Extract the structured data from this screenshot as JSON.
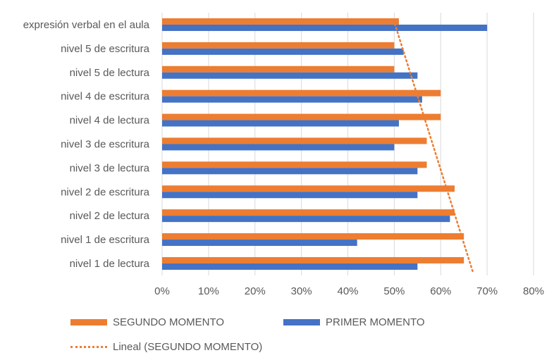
{
  "chart_data": {
    "type": "bar",
    "orientation": "horizontal",
    "categories": [
      "nivel 1 de lectura",
      "nivel 1 de escritura",
      "nivel 2 de lectura",
      "nivel 2 de escritura",
      "nivel 3 de lectura",
      "nivel 3 de escritura",
      "nivel 4 de lectura",
      "nivel 4 de escritura",
      "nivel 5 de lectura",
      "nivel 5 de escritura",
      "expresión verbal en el aula"
    ],
    "series": [
      {
        "name": "SEGUNDO MOMENTO",
        "color": "#ED7D31",
        "values": [
          0.65,
          0.65,
          0.63,
          0.63,
          0.57,
          0.57,
          0.6,
          0.6,
          0.5,
          0.5,
          0.51
        ]
      },
      {
        "name": "PRIMER MOMENTO",
        "color": "#4472C4",
        "values": [
          0.55,
          0.42,
          0.62,
          0.55,
          0.55,
          0.5,
          0.51,
          0.56,
          0.55,
          0.52,
          0.7
        ]
      }
    ],
    "trendline": {
      "name": "Lineal (SEGUNDO MOMENTO)",
      "series": "SEGUNDO MOMENTO",
      "type": "linear",
      "color": "#ED7D31",
      "style": "dotted"
    },
    "xlim": [
      0,
      0.8
    ],
    "xticks": [
      "0%",
      "10%",
      "20%",
      "30%",
      "40%",
      "50%",
      "60%",
      "70%",
      "80%"
    ],
    "grid": true,
    "legend_position": "bottom"
  }
}
